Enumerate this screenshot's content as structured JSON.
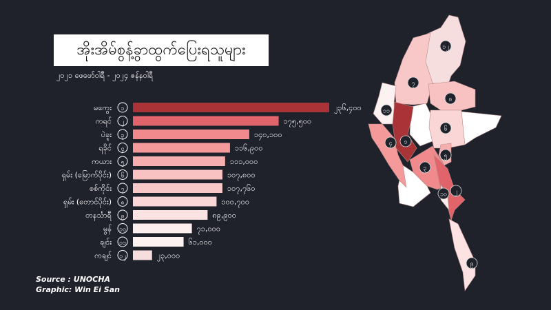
{
  "chart_data": {
    "type": "bar",
    "orientation": "horizontal",
    "title": "အိုးအိမ်စွန့်ခွာထွက်ပြေးရသူများ",
    "subtitle": "၂၀၂၁ ဖေဖော်ဝါရီ - ၂၀၂၄ ဇန်နဝါရီ",
    "categories": [
      "မကွေး",
      "ကရင်",
      "ပဲခူး",
      "ရခိုင်",
      "ကယား",
      "ရှမ်း (မြောက်ပိုင်း)",
      "စစ်ကိုင်း",
      "ရှမ်း (တောင်ပိုင်း)",
      "တနင်္သာရီ",
      "မွန်",
      "ချင်း",
      "ကချင်"
    ],
    "ranks": [
      "၁",
      "၂",
      "၃",
      "၄",
      "၅",
      "၆",
      "၇",
      "၈",
      "၉",
      "၁၀",
      "၁၁",
      "၁၂"
    ],
    "values": [
      236400,
      175500,
      140100,
      116900,
      111000,
      107800,
      107760,
      100700,
      89900,
      71000,
      61000,
      23000
    ],
    "value_labels": [
      "၂၃၆,၄၀၀",
      "၁၇၅,၅၀၀",
      "၁၄၀,၁၀၀",
      "၁၁၆,၉၀၀",
      "၁၁၁,၀၀၀",
      "၁၀၇,၈၀၀",
      "၁၀၇,၇၆၀",
      "၁၀၀,၇၀၀",
      "၈၉,၉၀၀",
      "၇၁,၀၀၀",
      "၆၁,၀၀၀",
      "၂၃,၀၀၀"
    ],
    "colors": [
      "#a83438",
      "#e0646a",
      "#f08a8c",
      "#f59a9a",
      "#f7aeae",
      "#f9c2c2",
      "#f8c8c8",
      "#fbd6d6",
      "#fce2e2",
      "#fdeeee",
      "#fdf2f2",
      "#f6dede"
    ],
    "xlim": [
      0,
      240000
    ],
    "grid": false,
    "legend": "none"
  },
  "map": {
    "region_labels": [
      "၁",
      "၂",
      "၃",
      "၄",
      "၅",
      "၆",
      "၇",
      "၈",
      "၉",
      "၁၀",
      "၁၁",
      "၁၂"
    ],
    "colors": {
      "background": "#1f222b",
      "unaffected": "#ffffff"
    }
  },
  "source": {
    "line1": "Source  :  UNOCHA",
    "line2": "Graphic: Win Ei San"
  }
}
